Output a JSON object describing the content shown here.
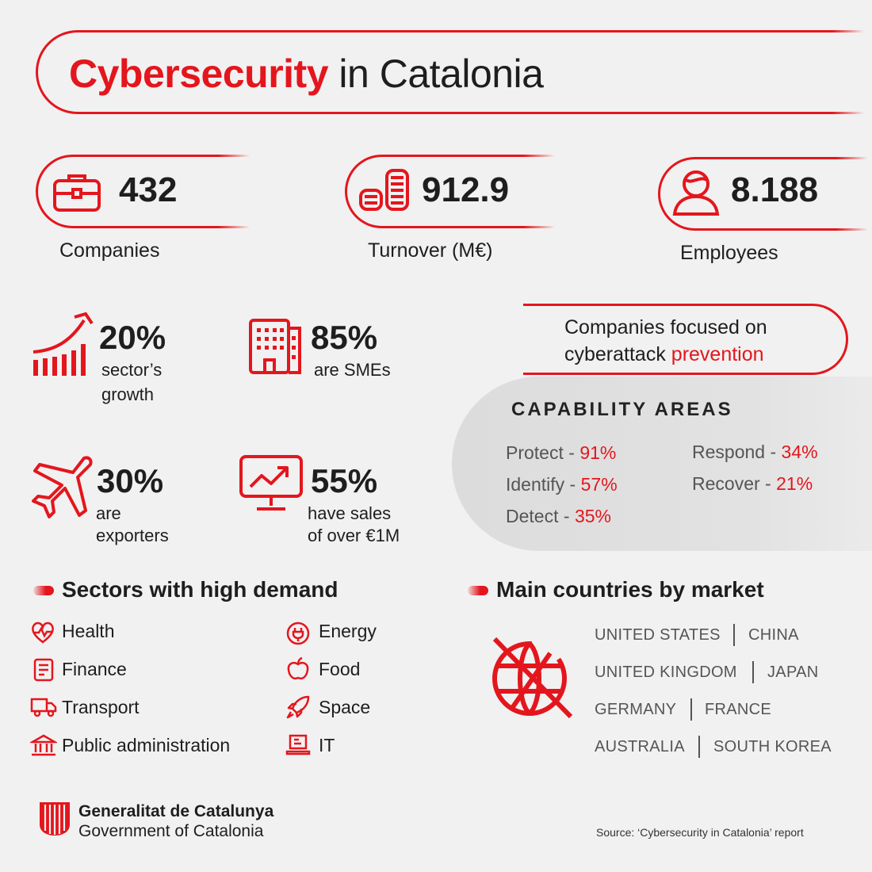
{
  "title": {
    "highlight": "Cybersecurity",
    "rest": "in Catalonia"
  },
  "kpis": [
    {
      "icon": "briefcase-icon",
      "value": "432",
      "label": "Companies"
    },
    {
      "icon": "coins-icon",
      "value": "912.9",
      "label": "Turnover (M€)"
    },
    {
      "icon": "user-icon",
      "value": "8.188",
      "label": "Employees"
    }
  ],
  "stats": [
    {
      "icon": "growth-chart-icon",
      "value": "20%",
      "line1": "sector’s",
      "line2": "growth"
    },
    {
      "icon": "building-icon",
      "value": "85%",
      "line1": "are SMEs",
      "line2": ""
    },
    {
      "icon": "airplane-icon",
      "value": "30%",
      "line1": "are",
      "line2": "exporters"
    },
    {
      "icon": "monitor-chart-icon",
      "value": "55%",
      "line1": "have sales",
      "line2": "of over €1M"
    }
  ],
  "prevention": {
    "line1": "Companies focused on",
    "line2_prefix": "cyberattack",
    "line2_highlight": "prevention"
  },
  "capability": {
    "title": "CAPABILITY AREAS",
    "items": [
      {
        "name": "Protect",
        "pct": "91%"
      },
      {
        "name": "Identify",
        "pct": "57%"
      },
      {
        "name": "Detect",
        "pct": "35%"
      },
      {
        "name": "Respond",
        "pct": "34%"
      },
      {
        "name": "Recover",
        "pct": "21%"
      }
    ]
  },
  "sectors": {
    "heading": "Sectors with high demand",
    "items": [
      {
        "icon": "heart-pulse-icon",
        "label": "Health"
      },
      {
        "icon": "finance-doc-icon",
        "label": "Finance"
      },
      {
        "icon": "truck-icon",
        "label": "Transport"
      },
      {
        "icon": "government-building-icon",
        "label": "Public administration"
      },
      {
        "icon": "energy-plug-icon",
        "label": "Energy"
      },
      {
        "icon": "apple-icon",
        "label": "Food"
      },
      {
        "icon": "rocket-icon",
        "label": "Space"
      },
      {
        "icon": "laptop-icon",
        "label": "IT"
      }
    ]
  },
  "countries": {
    "heading": "Main countries by market",
    "rows": [
      [
        "UNITED STATES",
        "CHINA"
      ],
      [
        "UNITED KINGDOM",
        "JAPAN"
      ],
      [
        "GERMANY",
        "FRANCE"
      ],
      [
        "AUSTRALIA",
        "SOUTH KOREA"
      ]
    ]
  },
  "footer": {
    "org_line1": "Generalitat de Catalunya",
    "org_line2": "Government of Catalonia",
    "source": "Source: ‘Cybersecurity in Catalonia’ report"
  },
  "colors": {
    "accent": "#e4161d",
    "background": "#f1f1f1",
    "text": "#1e1e1e"
  }
}
